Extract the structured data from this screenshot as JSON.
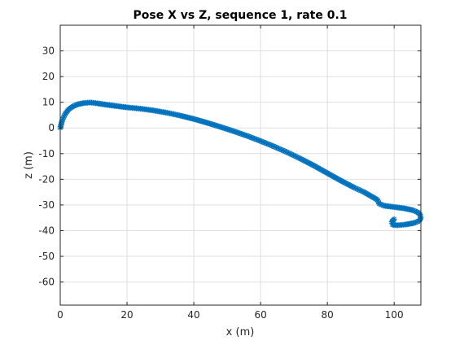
{
  "chart_data": {
    "type": "scatter",
    "title": "Pose X vs Z, sequence 1, rate 0.1",
    "xlabel": "x (m)",
    "ylabel": "z (m)",
    "xlim": [
      0,
      108
    ],
    "ylim": [
      -69,
      40
    ],
    "xticks": [
      0,
      20,
      40,
      60,
      80,
      100
    ],
    "yticks": [
      30,
      20,
      10,
      0,
      -10,
      -20,
      -30,
      -40,
      -50,
      -60
    ],
    "grid": true,
    "marker": "asterisk",
    "colors": {
      "series": "#0072BD",
      "axis": "#262626",
      "grid": "#dfdfdf"
    },
    "series": [
      {
        "x": [
          0,
          0.6,
          1.5,
          2.5,
          3.8,
          5.2,
          7,
          9,
          11,
          14,
          17,
          20,
          24,
          28,
          32,
          36,
          40,
          44,
          48,
          52,
          56,
          60,
          64,
          68,
          72,
          76,
          80,
          84,
          88,
          91,
          93,
          95,
          95.5,
          97,
          100,
          103,
          105.5,
          107,
          107.8,
          108,
          107.5,
          106,
          103.5,
          101,
          99.5,
          99.3,
          100
        ],
        "y": [
          0,
          3,
          5.5,
          7.2,
          8.4,
          9.2,
          9.7,
          9.9,
          9.6,
          9.0,
          8.5,
          8.0,
          7.5,
          6.8,
          5.9,
          4.8,
          3.5,
          2.0,
          0.4,
          -1.3,
          -3.1,
          -5.1,
          -7.2,
          -9.5,
          -12.0,
          -14.7,
          -17.6,
          -20.5,
          -23.2,
          -25.0,
          -26.5,
          -28.0,
          -29.5,
          -30.3,
          -30.8,
          -31.3,
          -32.0,
          -32.8,
          -33.8,
          -35.0,
          -36.2,
          -37.0,
          -37.6,
          -37.9,
          -37.7,
          -36.5,
          -35.5
        ]
      }
    ]
  }
}
